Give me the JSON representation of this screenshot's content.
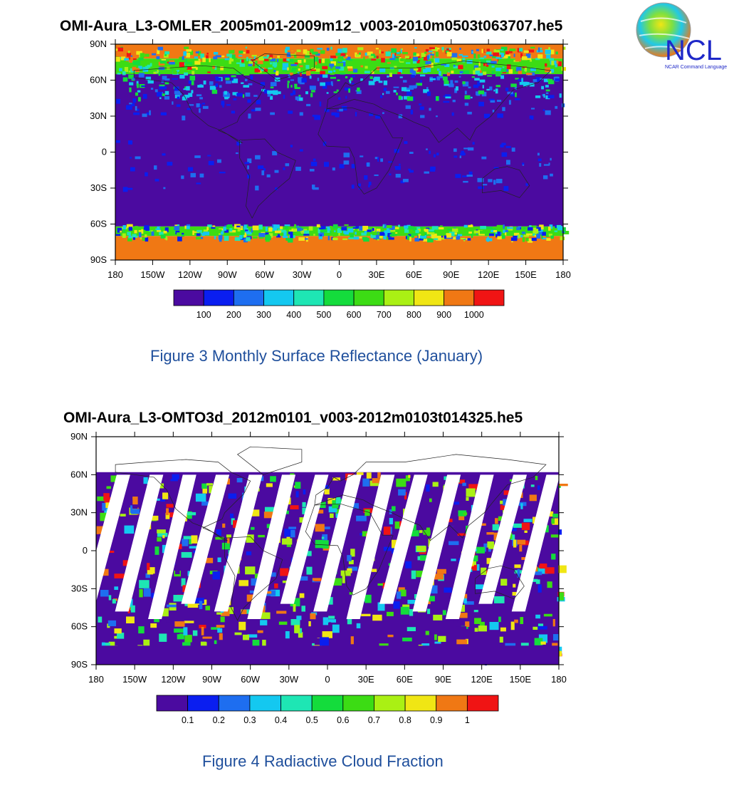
{
  "logo": {
    "text": "NCL",
    "subtext": "NCAR Command Language"
  },
  "chart_data": [
    {
      "type": "heatmap",
      "title": "OMI-Aura_L3-OMLER_2005m01-2009m12_v003-2010m0503t063707.he5",
      "caption": "Figure 3 Monthly Surface Reflectance (January)",
      "xlabel": "",
      "ylabel": "",
      "x_ticks": [
        "180",
        "150W",
        "120W",
        "90W",
        "60W",
        "30W",
        "0",
        "30E",
        "60E",
        "90E",
        "120E",
        "150E",
        "180"
      ],
      "y_ticks": [
        "90N",
        "60N",
        "30N",
        "0",
        "30S",
        "60S",
        "90S"
      ],
      "xlim": [
        -180,
        180
      ],
      "ylim": [
        -90,
        90
      ],
      "colorbar_labels": [
        "100",
        "200",
        "300",
        "400",
        "500",
        "600",
        "700",
        "800",
        "900",
        "1000"
      ],
      "colors": [
        "#4b0aa0",
        "#0a1ef0",
        "#1e6ef0",
        "#14c8f0",
        "#1ee6b4",
        "#14dc3c",
        "#3cdc14",
        "#aaf014",
        "#f0e614",
        "#f07814",
        "#f01414"
      ],
      "bands": [
        {
          "lat_from": 90,
          "lat_to": 78,
          "level": 9
        },
        {
          "lat_from": 78,
          "lat_to": 65,
          "level": 6
        },
        {
          "lat_from": 65,
          "lat_to": -62,
          "level": 0
        },
        {
          "lat_from": -62,
          "lat_to": -70,
          "level": 6
        },
        {
          "lat_from": -70,
          "lat_to": -90,
          "level": 9
        }
      ]
    },
    {
      "type": "heatmap",
      "title": "OMI-Aura_L3-OMTO3d_2012m0101_v003-2012m0103t014325.he5",
      "caption": "Figure 4 Radiactive Cloud Fraction",
      "xlabel": "",
      "ylabel": "",
      "x_ticks": [
        "180",
        "150W",
        "120W",
        "90W",
        "60W",
        "30W",
        "0",
        "30E",
        "60E",
        "90E",
        "120E",
        "150E",
        "180"
      ],
      "y_ticks": [
        "90N",
        "60N",
        "30N",
        "0",
        "30S",
        "60S",
        "90S"
      ],
      "xlim": [
        -180,
        180
      ],
      "ylim": [
        -90,
        90
      ],
      "colorbar_labels": [
        "0.1",
        "0.2",
        "0.3",
        "0.4",
        "0.5",
        "0.6",
        "0.7",
        "0.8",
        "0.9",
        "1"
      ],
      "colors": [
        "#4b0aa0",
        "#0a1ef0",
        "#1e6ef0",
        "#14c8f0",
        "#1ee6b4",
        "#14dc3c",
        "#3cdc14",
        "#aaf014",
        "#f0e614",
        "#f07814",
        "#f01414"
      ],
      "data_lat_range": [
        -90,
        62
      ],
      "swath_gap_count": 14
    }
  ]
}
